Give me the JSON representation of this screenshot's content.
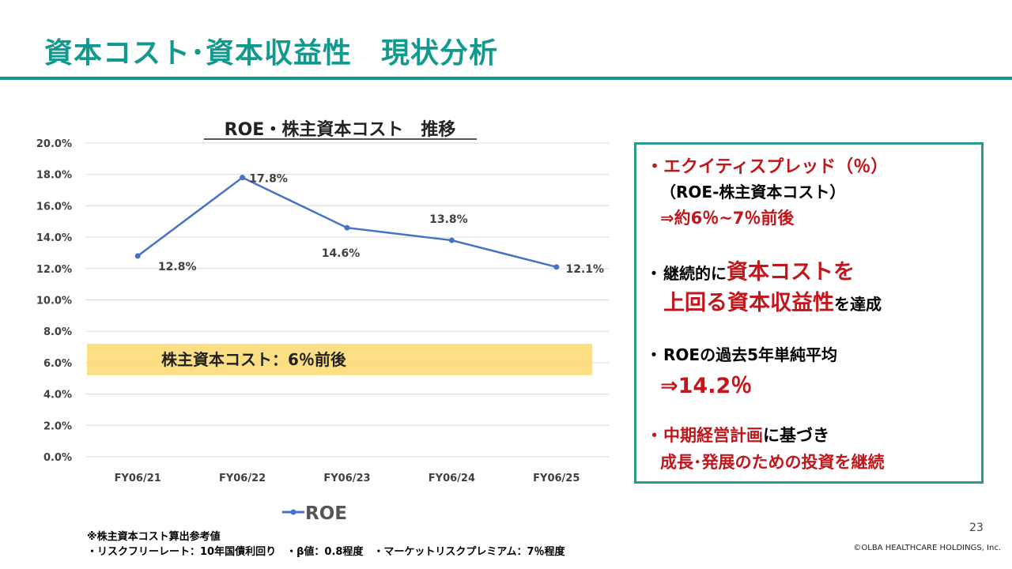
{
  "page": {
    "title": "資本コスト･資本収益性　現状分析",
    "page_number": "23",
    "copyright": "©OLBA HEALTHCARE HOLDINGS, Inc."
  },
  "chart_data": {
    "type": "line",
    "title": "ROE・株主資本コスト　推移",
    "categories": [
      "FY06/21",
      "FY06/22",
      "FY06/23",
      "FY06/24",
      "FY06/25"
    ],
    "series": [
      {
        "name": "ROE",
        "values": [
          12.8,
          17.8,
          14.6,
          13.8,
          12.1
        ],
        "color": "#4472c4"
      }
    ],
    "value_labels": [
      "12.8%",
      "17.8%",
      "14.6%",
      "13.8%",
      "12.1%"
    ],
    "y_ticks": [
      "0.0%",
      "2.0%",
      "4.0%",
      "6.0%",
      "8.0%",
      "10.0%",
      "12.0%",
      "14.0%",
      "16.0%",
      "18.0%",
      "20.0%"
    ],
    "ylim": [
      0,
      20
    ],
    "grid": true,
    "legend_position": "bottom",
    "band": {
      "label": "株主資本コスト：6％前後",
      "from": 5.2,
      "to": 7.2,
      "color": "#fbd870"
    }
  },
  "points": {
    "p1_line1": "エクイティスプレッド（％）",
    "p1_line2": "（ROE-株主資本コスト）",
    "p1_line3": "⇒約6％~7％前後",
    "p2_prefix": "継続的に",
    "p2_red1": "資本コストを",
    "p2_red2": "上回る資本収益性",
    "p2_suffix": "を達成",
    "p3_line1": "ROEの過去5年単純平均",
    "p3_line2": "⇒14.2％",
    "p4_red": "中期経営計画",
    "p4_suffix": "に基づき",
    "p4_line2": "成長･発展のための投資を継続"
  },
  "footnote": {
    "line1": "※株主資本コスト算出参考値",
    "line2": "・リスクフリーレート：10年国債利回り　・β値：0.8程度　・マーケットリスクプレミアム：7％程度"
  },
  "colors": {
    "accent": "#12998e",
    "box_border": "#2a9a8e",
    "emphasis": "#c0161c",
    "line": "#4472c4"
  }
}
